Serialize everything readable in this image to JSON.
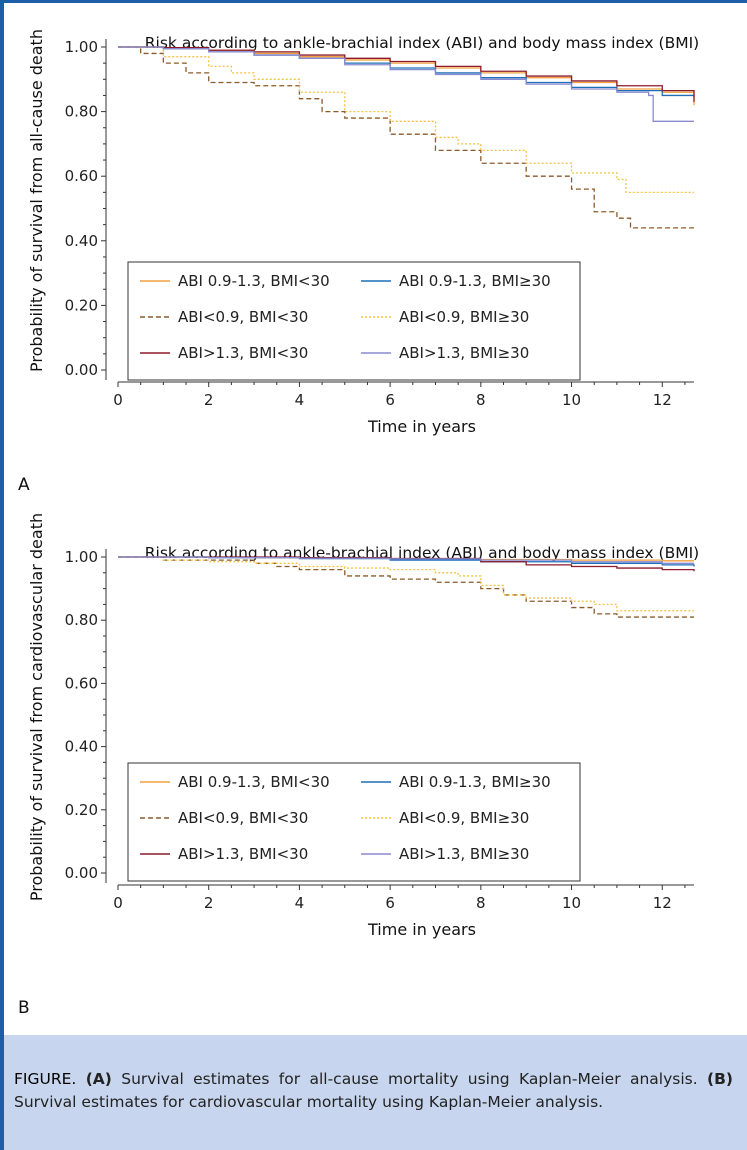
{
  "caption": {
    "label": "FIGURE.",
    "a_marker": "(A)",
    "a_text": " Survival estimates for all-cause mortality using Kaplan-Meier analysis. ",
    "b_marker": "(B)",
    "b_text": " Survival estimates for cardiovascular mortality using Kaplan-Meier analysis."
  },
  "colors": {
    "frame": "#1e5ea8",
    "caption_bg": "#c7d6ee"
  },
  "chart_data": [
    {
      "panel_label": "A",
      "type": "line",
      "title": "Risk according to ankle-brachial index (ABI) and body mass index (BMI)",
      "xlabel": "Time in years",
      "ylabel": "Probability of survival from all-cause death",
      "xlim": [
        0,
        12.7
      ],
      "ylim": [
        0,
        1.0
      ],
      "xticks": [
        0,
        2,
        4,
        6,
        8,
        10,
        12
      ],
      "yticks": [
        "0.00",
        "0.20",
        "0.40",
        "0.60",
        "0.80",
        "1.00"
      ],
      "legend": "bottom-left",
      "series": [
        {
          "name": "ABI 0.9-1.3, BMI<30",
          "color": "#f0a040",
          "dash": "solid",
          "x": [
            0,
            1,
            2,
            3,
            4,
            5,
            6,
            7,
            8,
            9,
            10,
            11,
            12,
            12.7
          ],
          "y": [
            1.0,
            0.995,
            0.99,
            0.98,
            0.97,
            0.96,
            0.95,
            0.935,
            0.92,
            0.905,
            0.89,
            0.87,
            0.86,
            0.82
          ]
        },
        {
          "name": "ABI 0.9-1.3, BMI≥30",
          "color": "#1f6fb8",
          "dash": "solid",
          "x": [
            0,
            1,
            2,
            3,
            4,
            5,
            6,
            7,
            8,
            9,
            10,
            11,
            12,
            12.7
          ],
          "y": [
            1.0,
            0.995,
            0.985,
            0.975,
            0.965,
            0.95,
            0.935,
            0.92,
            0.905,
            0.89,
            0.875,
            0.865,
            0.85,
            0.845
          ]
        },
        {
          "name": "ABI<0.9, BMI<30",
          "color": "#8b5a2b",
          "dash": "dash",
          "x": [
            0,
            0.5,
            1,
            1.5,
            2,
            3,
            4,
            4.5,
            5,
            6,
            7,
            8,
            9,
            10,
            10.5,
            11,
            11.3,
            12.7
          ],
          "y": [
            1.0,
            0.98,
            0.95,
            0.92,
            0.89,
            0.88,
            0.84,
            0.8,
            0.78,
            0.73,
            0.68,
            0.64,
            0.6,
            0.56,
            0.49,
            0.47,
            0.44,
            0.44
          ]
        },
        {
          "name": "ABI<0.9, BMI≥30",
          "color": "#f5c242",
          "dash": "dot",
          "x": [
            0,
            1,
            2,
            2.5,
            3,
            4,
            5,
            6,
            7,
            7.5,
            8,
            9,
            10,
            11,
            11.2,
            12.7
          ],
          "y": [
            1.0,
            0.97,
            0.94,
            0.92,
            0.9,
            0.86,
            0.8,
            0.77,
            0.72,
            0.7,
            0.68,
            0.64,
            0.61,
            0.59,
            0.55,
            0.55
          ]
        },
        {
          "name": "ABI>1.3, BMI<30",
          "color": "#8b1a2a",
          "dash": "solid",
          "x": [
            0,
            1,
            2,
            3,
            4,
            5,
            6,
            7,
            8,
            9,
            10,
            11,
            12,
            12.7
          ],
          "y": [
            1.0,
            0.998,
            0.99,
            0.985,
            0.975,
            0.965,
            0.955,
            0.94,
            0.925,
            0.91,
            0.895,
            0.88,
            0.865,
            0.83
          ]
        },
        {
          "name": "ABI>1.3, BMI≥30",
          "color": "#8a8ad0",
          "dash": "solid",
          "x": [
            0,
            1,
            2,
            3,
            4,
            5,
            6,
            7,
            8,
            9,
            10,
            11,
            11.7,
            11.8,
            12.7
          ],
          "y": [
            1.0,
            0.995,
            0.985,
            0.975,
            0.965,
            0.945,
            0.93,
            0.915,
            0.9,
            0.885,
            0.87,
            0.86,
            0.85,
            0.77,
            0.77
          ]
        }
      ]
    },
    {
      "panel_label": "B",
      "type": "line",
      "title": "Risk according to ankle-brachial index (ABI) and body mass index (BMI)",
      "xlabel": "Time in years",
      "ylabel": "Probability of survival from cardiovascular death",
      "xlim": [
        0,
        12.7
      ],
      "ylim": [
        0,
        1.0
      ],
      "xticks": [
        0,
        2,
        4,
        6,
        8,
        10,
        12
      ],
      "yticks": [
        "0.00",
        "0.20",
        "0.40",
        "0.60",
        "0.80",
        "1.00"
      ],
      "legend": "bottom-left",
      "series": [
        {
          "name": "ABI 0.9-1.3, BMI<30",
          "color": "#f0a040",
          "dash": "solid",
          "x": [
            0,
            2,
            4,
            6,
            8,
            10,
            12,
            12.7
          ],
          "y": [
            1.0,
            0.998,
            0.996,
            0.994,
            0.992,
            0.99,
            0.988,
            0.988
          ]
        },
        {
          "name": "ABI 0.9-1.3, BMI≥30",
          "color": "#1f6fb8",
          "dash": "solid",
          "x": [
            0,
            2,
            4,
            6,
            8,
            10,
            12,
            12.7
          ],
          "y": [
            1.0,
            0.998,
            0.995,
            0.99,
            0.985,
            0.98,
            0.975,
            0.97
          ]
        },
        {
          "name": "ABI<0.9, BMI<30",
          "color": "#8b5a2b",
          "dash": "dash",
          "x": [
            0,
            1,
            2,
            3,
            3.5,
            4,
            5,
            6,
            7,
            8,
            8.5,
            9,
            10,
            10.5,
            11,
            12.7
          ],
          "y": [
            1.0,
            0.99,
            0.99,
            0.98,
            0.97,
            0.96,
            0.94,
            0.93,
            0.92,
            0.9,
            0.88,
            0.86,
            0.84,
            0.82,
            0.81,
            0.81
          ]
        },
        {
          "name": "ABI<0.9, BMI≥30",
          "color": "#f5c242",
          "dash": "dot",
          "x": [
            0,
            1,
            2,
            3,
            4,
            5,
            6,
            7,
            7.5,
            8,
            8.5,
            9,
            10,
            10.5,
            11,
            12.7
          ],
          "y": [
            1.0,
            0.99,
            0.985,
            0.98,
            0.97,
            0.965,
            0.96,
            0.95,
            0.94,
            0.91,
            0.88,
            0.87,
            0.86,
            0.85,
            0.83,
            0.83
          ]
        },
        {
          "name": "ABI>1.3, BMI<30",
          "color": "#8b1a2a",
          "dash": "solid",
          "x": [
            0,
            2,
            4,
            6,
            8,
            9,
            10,
            11,
            12,
            12.7
          ],
          "y": [
            1.0,
            1.0,
            0.998,
            0.995,
            0.985,
            0.975,
            0.97,
            0.965,
            0.96,
            0.955
          ]
        },
        {
          "name": "ABI>1.3, BMI≥30",
          "color": "#8a8ad0",
          "dash": "solid",
          "x": [
            0,
            2,
            4,
            6,
            8,
            10,
            12,
            12.7
          ],
          "y": [
            1.0,
            0.998,
            0.996,
            0.994,
            0.99,
            0.985,
            0.98,
            0.98
          ]
        }
      ]
    }
  ]
}
